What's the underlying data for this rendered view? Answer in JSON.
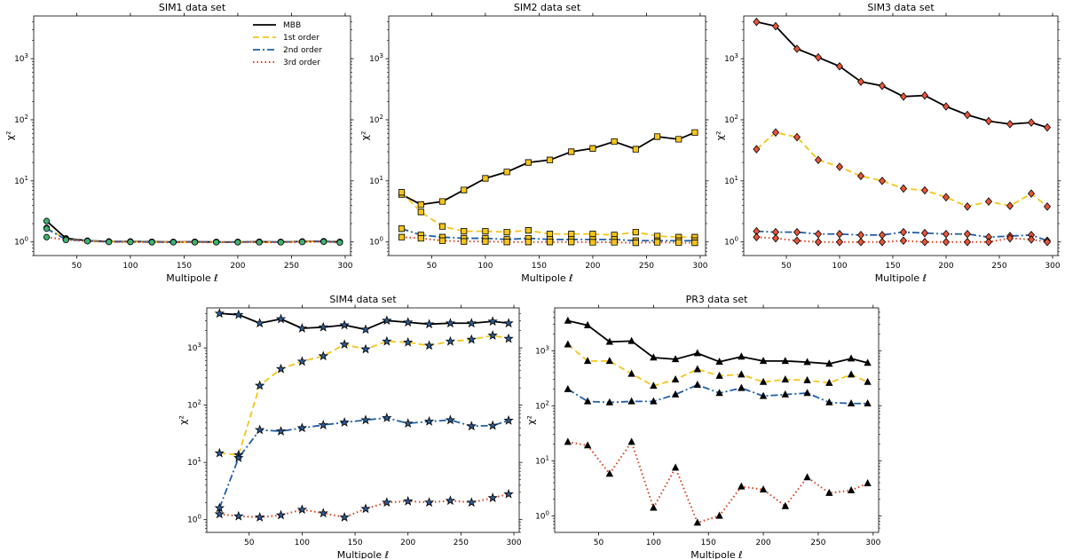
{
  "figure": {
    "type": "line",
    "x": [
      22,
      40,
      60,
      80,
      100,
      120,
      140,
      160,
      180,
      200,
      220,
      240,
      260,
      280,
      295
    ],
    "xlabel": "Multipole ℓ",
    "ylabel": "χ²",
    "xticks": [
      50,
      100,
      150,
      200,
      250,
      300
    ],
    "legend": {
      "location": "top-right",
      "entries": [
        {
          "name": "MBB",
          "color": "#000000",
          "style": "solid"
        },
        {
          "name": "1st order",
          "color": "#f5c518",
          "style": "dashed"
        },
        {
          "name": "2nd order",
          "color": "#1f5fa8",
          "style": "dashdot"
        },
        {
          "name": "3rd order",
          "color": "#d8401f",
          "style": "dotted"
        }
      ]
    }
  },
  "chart_data": [
    {
      "type": "line",
      "title": "SIM1 data set",
      "xlabel": "Multipole ℓ",
      "ylabel": "χ²",
      "xlim": [
        10,
        305
      ],
      "ylim": [
        0.6,
        5000
      ],
      "yscale": "log",
      "marker": "circle",
      "marker_color": "#3cb371",
      "x": [
        22,
        40,
        60,
        80,
        100,
        120,
        140,
        160,
        180,
        200,
        220,
        240,
        260,
        280,
        295
      ],
      "series": [
        {
          "name": "MBB",
          "values": [
            2.2,
            1.15,
            1.05,
            1.02,
            1.02,
            1.01,
            1.0,
            1.01,
            1.0,
            1.0,
            1.01,
            1.0,
            1.02,
            1.03,
            1.0
          ]
        },
        {
          "name": "1st order",
          "values": [
            1.7,
            1.12,
            1.04,
            1.01,
            1.01,
            1.0,
            1.0,
            1.0,
            1.0,
            1.0,
            1.0,
            1.0,
            1.01,
            1.02,
            1.0
          ]
        },
        {
          "name": "2nd order",
          "values": [
            1.65,
            1.1,
            1.04,
            1.01,
            1.01,
            1.0,
            1.0,
            1.0,
            1.0,
            1.0,
            1.0,
            1.0,
            1.01,
            1.02,
            0.99
          ]
        },
        {
          "name": "3rd order",
          "values": [
            1.2,
            1.08,
            1.03,
            1.0,
            1.0,
            0.99,
            0.99,
            0.99,
            0.99,
            0.99,
            0.99,
            0.99,
            1.0,
            1.01,
            0.98
          ]
        }
      ]
    },
    {
      "type": "line",
      "title": "SIM2 data set",
      "xlabel": "Multipole ℓ",
      "ylabel": "χ²",
      "xlim": [
        10,
        305
      ],
      "ylim": [
        0.6,
        5000
      ],
      "yscale": "log",
      "marker": "square",
      "marker_color": "#f5c518",
      "x": [
        22,
        40,
        60,
        80,
        100,
        120,
        140,
        160,
        180,
        200,
        220,
        240,
        260,
        280,
        295
      ],
      "series": [
        {
          "name": "MBB",
          "values": [
            6.0,
            4.1,
            4.6,
            7.1,
            11.0,
            14.0,
            20.0,
            22.0,
            30.0,
            34.0,
            44.0,
            33.0,
            53.0,
            48.0,
            62.0
          ]
        },
        {
          "name": "1st order",
          "values": [
            6.5,
            3.1,
            1.8,
            1.5,
            1.5,
            1.45,
            1.55,
            1.35,
            1.35,
            1.35,
            1.3,
            1.45,
            1.25,
            1.2,
            1.2
          ]
        },
        {
          "name": "2nd order",
          "values": [
            1.65,
            1.3,
            1.2,
            1.15,
            1.15,
            1.1,
            1.15,
            1.1,
            1.1,
            1.1,
            1.1,
            1.05,
            1.05,
            1.05,
            1.05
          ]
        },
        {
          "name": "3rd order",
          "values": [
            1.2,
            1.15,
            1.05,
            1.02,
            1.02,
            1.0,
            1.0,
            1.0,
            1.0,
            0.99,
            0.99,
            0.97,
            0.99,
            0.98,
            0.97
          ]
        }
      ]
    },
    {
      "type": "line",
      "title": "SIM3 data set",
      "xlabel": "Multipole ℓ",
      "ylabel": "χ²",
      "xlim": [
        10,
        305
      ],
      "ylim": [
        0.6,
        5000
      ],
      "yscale": "log",
      "marker": "diamond",
      "marker_color": "#e8553a",
      "x": [
        22,
        40,
        60,
        80,
        100,
        120,
        140,
        160,
        180,
        200,
        220,
        240,
        260,
        280,
        295
      ],
      "series": [
        {
          "name": "MBB",
          "values": [
            4000,
            3400,
            1450,
            1050,
            750,
            420,
            360,
            240,
            250,
            165,
            120,
            95,
            85,
            90,
            75
          ]
        },
        {
          "name": "1st order",
          "values": [
            33,
            62,
            52,
            22,
            17,
            12,
            10,
            7.5,
            7.0,
            5.4,
            3.8,
            4.6,
            3.9,
            6.2,
            3.8
          ]
        },
        {
          "name": "2nd order",
          "values": [
            1.5,
            1.45,
            1.45,
            1.35,
            1.35,
            1.3,
            1.3,
            1.45,
            1.4,
            1.35,
            1.35,
            1.2,
            1.25,
            1.3,
            1.05
          ]
        },
        {
          "name": "3rd order",
          "values": [
            1.2,
            1.15,
            1.05,
            1.0,
            1.0,
            1.0,
            1.0,
            1.05,
            1.0,
            1.0,
            1.0,
            1.0,
            1.15,
            1.1,
            1.0
          ]
        }
      ]
    },
    {
      "type": "line",
      "title": "SIM4 data set",
      "xlabel": "Multipole ℓ",
      "ylabel": "χ²",
      "xlim": [
        10,
        305
      ],
      "ylim": [
        0.6,
        5000
      ],
      "yscale": "log",
      "marker": "star",
      "marker_color": "#2b5b95",
      "x": [
        22,
        40,
        60,
        80,
        100,
        120,
        140,
        160,
        180,
        200,
        220,
        240,
        260,
        280,
        295
      ],
      "series": [
        {
          "name": "MBB",
          "values": [
            4000,
            3800,
            2700,
            3200,
            2200,
            2300,
            2500,
            2100,
            3000,
            2800,
            2600,
            2700,
            2700,
            2900,
            2700
          ]
        },
        {
          "name": "1st order",
          "values": [
            14.5,
            13.5,
            220,
            430,
            580,
            720,
            1150,
            950,
            1300,
            1250,
            1100,
            1300,
            1400,
            1650,
            1450
          ]
        },
        {
          "name": "2nd order",
          "values": [
            1.6,
            12,
            37,
            35,
            40,
            45,
            50,
            55,
            60,
            48,
            52,
            55,
            43,
            44,
            54
          ]
        },
        {
          "name": "3rd order",
          "values": [
            1.25,
            1.15,
            1.1,
            1.2,
            1.5,
            1.3,
            1.1,
            1.55,
            2.0,
            2.1,
            2.0,
            2.15,
            2.0,
            2.4,
            2.8
          ]
        }
      ]
    },
    {
      "type": "line",
      "title": "PR3 data set",
      "xlabel": "Multipole ℓ",
      "ylabel": "χ²",
      "xlim": [
        10,
        305
      ],
      "ylim": [
        0.5,
        6000
      ],
      "yscale": "log",
      "marker": "triangle",
      "marker_color": "#000000",
      "x": [
        22,
        40,
        60,
        80,
        100,
        120,
        140,
        160,
        180,
        200,
        220,
        240,
        260,
        280,
        295
      ],
      "series": [
        {
          "name": "MBB",
          "values": [
            3500,
            2900,
            1450,
            1500,
            750,
            700,
            900,
            630,
            780,
            650,
            650,
            620,
            580,
            720,
            600
          ]
        },
        {
          "name": "1st order",
          "values": [
            1300,
            650,
            650,
            380,
            230,
            300,
            460,
            350,
            370,
            270,
            300,
            290,
            260,
            370,
            270
          ]
        },
        {
          "name": "2nd order",
          "values": [
            200,
            120,
            115,
            120,
            120,
            160,
            240,
            170,
            210,
            150,
            160,
            170,
            115,
            110,
            110
          ]
        },
        {
          "name": "3rd order",
          "values": [
            22,
            19,
            5.8,
            22,
            1.4,
            7.5,
            0.75,
            1.0,
            3.4,
            3.0,
            1.5,
            5.0,
            2.6,
            2.9,
            3.9
          ]
        }
      ]
    }
  ]
}
